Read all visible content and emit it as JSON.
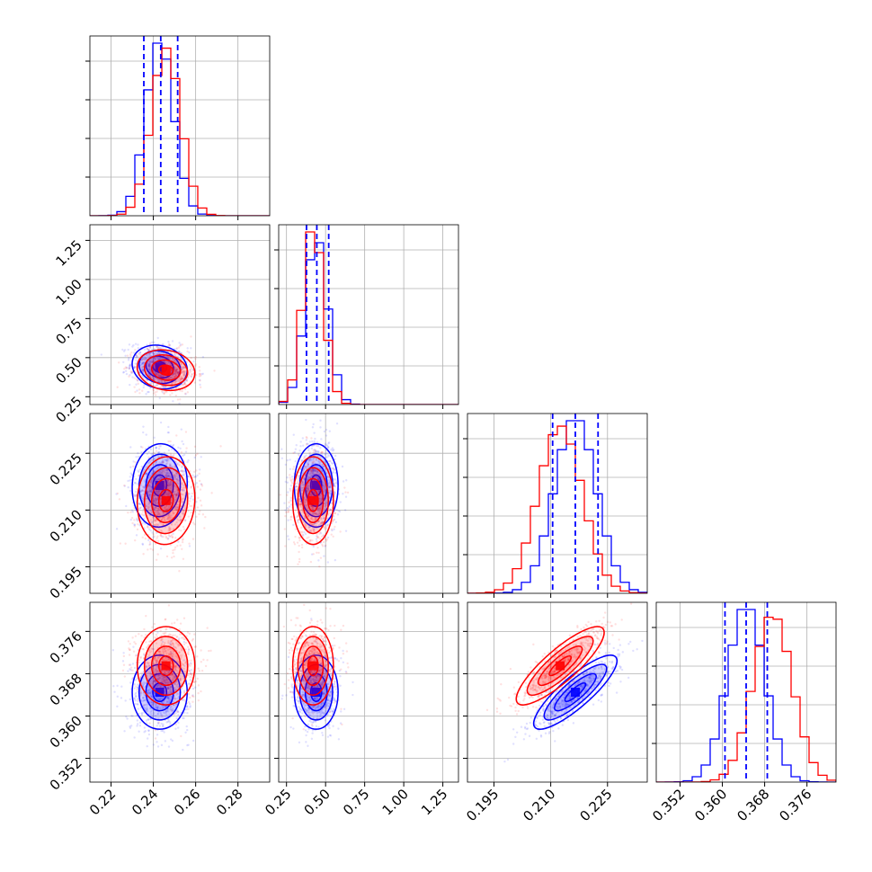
{
  "chart_data": {
    "type": "corner",
    "title": "",
    "colors": {
      "series_a": "#0000ff",
      "series_b": "#ff0000"
    },
    "grid": true,
    "params": [
      {
        "range": [
          0.21,
          0.295
        ],
        "ticks": [
          0.22,
          0.24,
          0.26,
          0.28
        ],
        "tick_labels": [
          "0.22",
          "0.24",
          "0.26",
          "0.28"
        ],
        "quantiles": [
          0.2355,
          0.2435,
          0.2515
        ],
        "center_a": 0.243,
        "center_b": 0.246,
        "sigma_a": 0.0065,
        "sigma_b": 0.0068
      },
      {
        "range": [
          0.2,
          1.35
        ],
        "ticks": [
          0.25,
          0.5,
          0.75,
          1.0,
          1.25
        ],
        "tick_labels": [
          "0.25",
          "0.50",
          "0.75",
          "1.00",
          "1.25"
        ],
        "quantiles": [
          0.378,
          0.444,
          0.52
        ],
        "center_a": 0.44,
        "center_b": 0.42,
        "sigma_a": 0.07,
        "sigma_b": 0.065
      },
      {
        "range": [
          0.188,
          0.2355
        ],
        "ticks": [
          0.195,
          0.21,
          0.225
        ],
        "tick_labels": [
          "0.195",
          "0.210",
          "0.225"
        ],
        "quantiles": [
          0.2105,
          0.2165,
          0.2225
        ],
        "center_a": 0.2165,
        "center_b": 0.2125,
        "sigma_a": 0.0055,
        "sigma_b": 0.0058
      },
      {
        "range": [
          0.3475,
          0.3815
        ],
        "ticks": [
          0.352,
          0.36,
          0.368,
          0.376
        ],
        "tick_labels": [
          "0.352",
          "0.360",
          "0.368",
          "0.376"
        ],
        "quantiles": [
          0.3605,
          0.3645,
          0.3685
        ],
        "center_a": 0.3645,
        "center_b": 0.3695,
        "sigma_a": 0.0035,
        "sigma_b": 0.0037
      }
    ],
    "correlations": {
      "0-1": -0.15,
      "0-2": 0.05,
      "1-2": 0.0,
      "0-3": 0.0,
      "1-3": 0.0,
      "2-3": 0.85
    }
  }
}
